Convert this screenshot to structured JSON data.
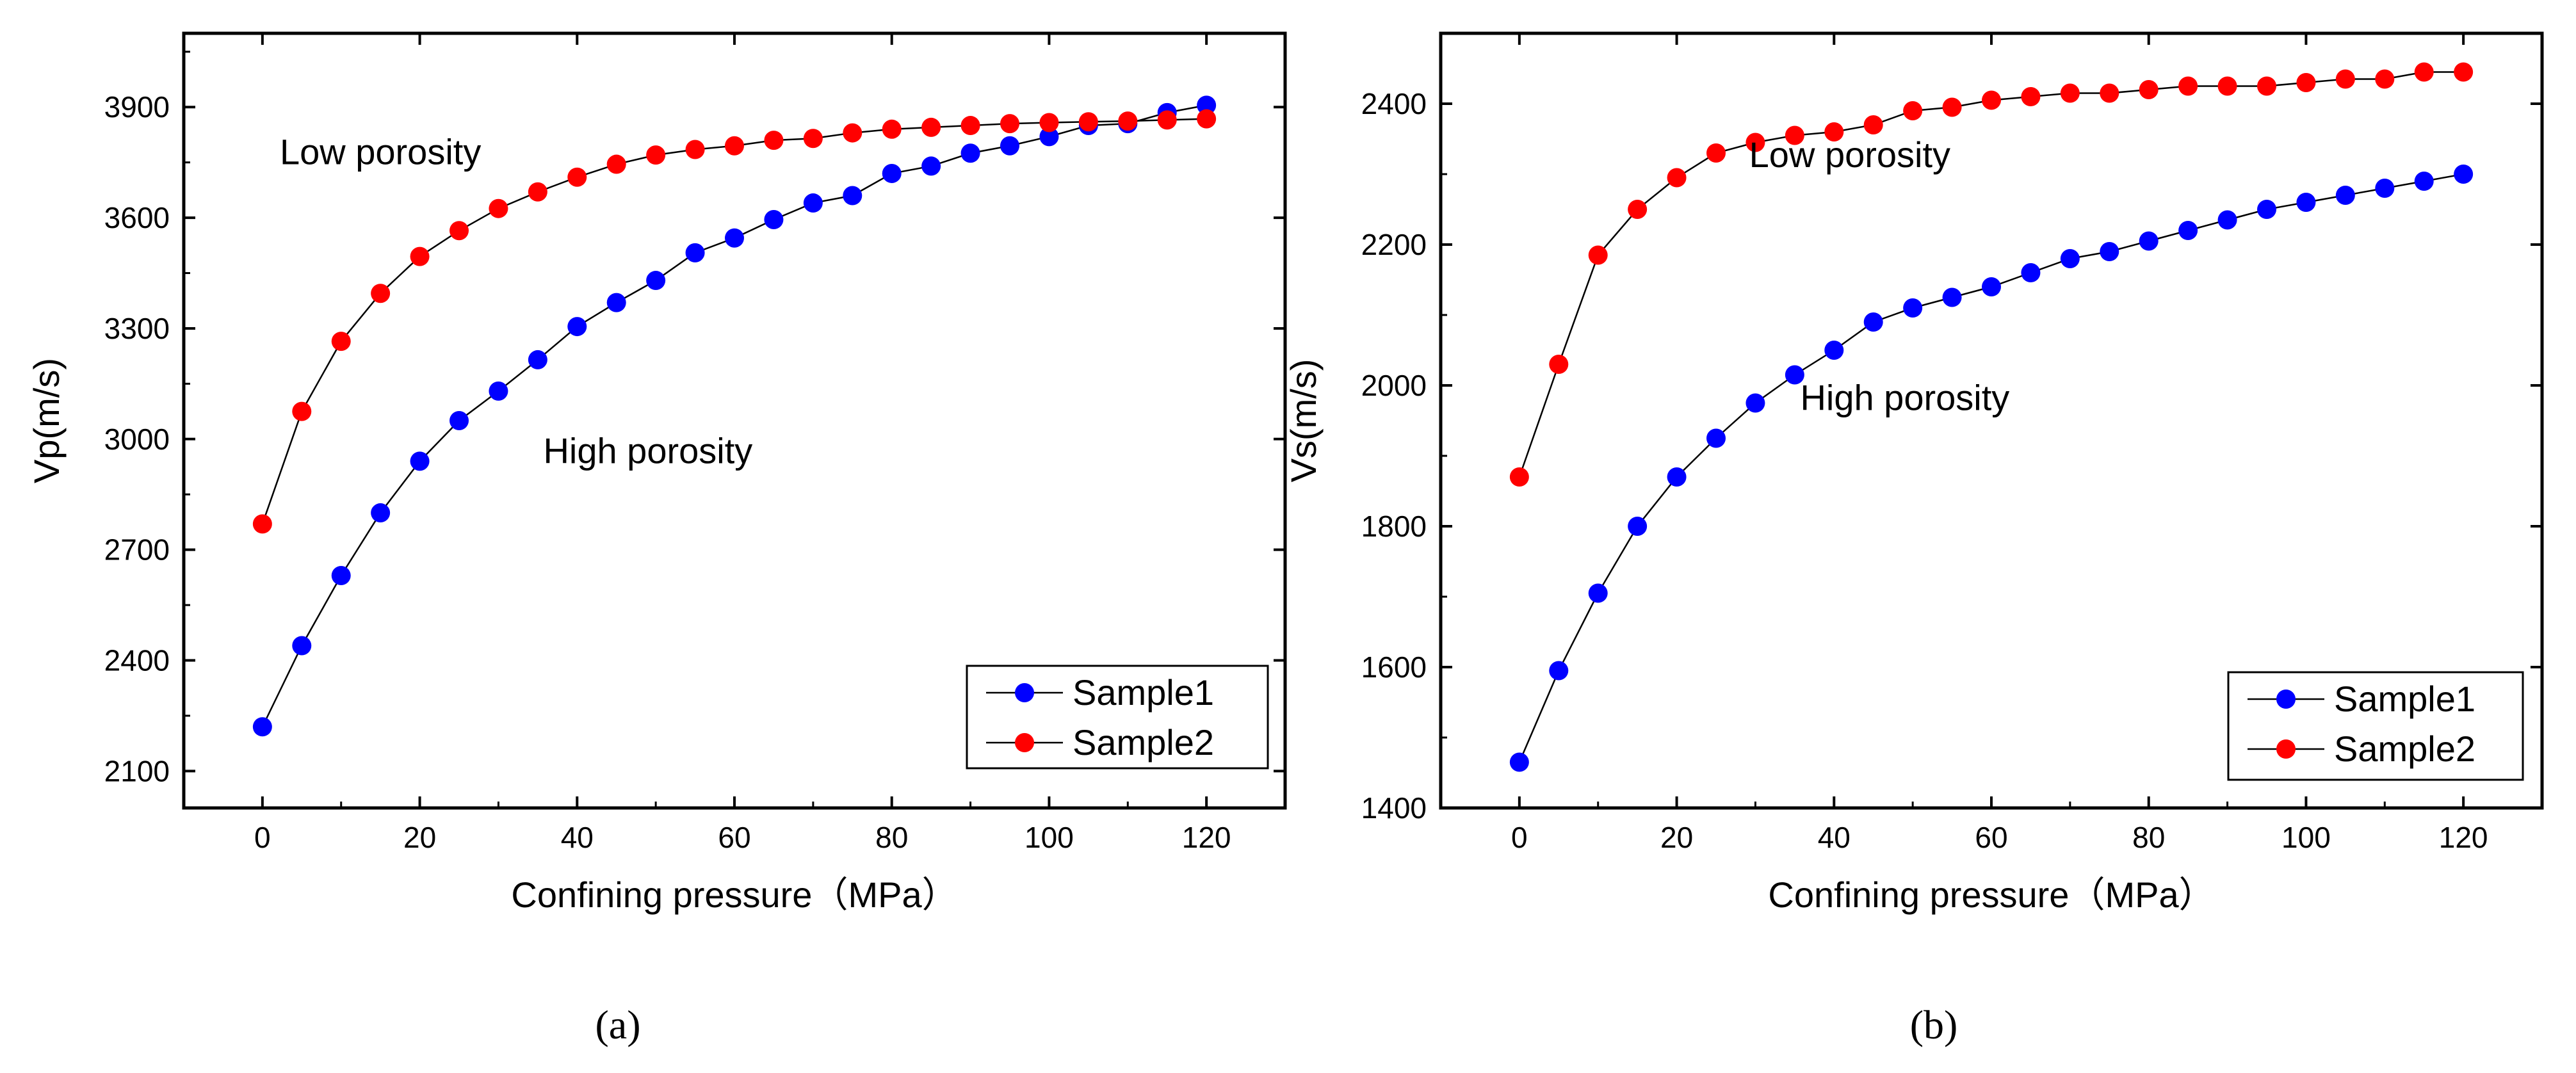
{
  "chart_data": [
    {
      "type": "line",
      "xlabel": "Confining pressure（MPa）",
      "ylabel": "Vp(m/s)",
      "xlim": [
        -10,
        130
      ],
      "ylim": [
        2000,
        4100
      ],
      "xticks": [
        0,
        20,
        40,
        60,
        80,
        100,
        120
      ],
      "yticks": [
        2100,
        2400,
        2700,
        3000,
        3300,
        3600,
        3900
      ],
      "grid": false,
      "legend_position": "bottom-right",
      "x": [
        0,
        5,
        10,
        15,
        20,
        25,
        30,
        35,
        40,
        45,
        50,
        55,
        60,
        65,
        70,
        75,
        80,
        85,
        90,
        95,
        100,
        105,
        110,
        115,
        120
      ],
      "series": [
        {
          "name": "Sample1",
          "color": "#0000ff",
          "values": [
            2220,
            2440,
            2630,
            2800,
            2940,
            3050,
            3130,
            3215,
            3305,
            3370,
            3430,
            3505,
            3545,
            3595,
            3640,
            3660,
            3720,
            3740,
            3775,
            3795,
            3820,
            3850,
            3855,
            3885,
            3905
          ]
        },
        {
          "name": "Sample2",
          "color": "#ff0000",
          "values": [
            2770,
            3075,
            3265,
            3395,
            3495,
            3565,
            3625,
            3670,
            3710,
            3745,
            3770,
            3785,
            3795,
            3810,
            3815,
            3830,
            3840,
            3845,
            3850,
            3855,
            3858,
            3860,
            3862,
            3865,
            3868
          ]
        }
      ],
      "annotations": [
        {
          "text": "Low porosity",
          "x": 15,
          "y": 3745
        },
        {
          "text": "High porosity",
          "x": 49,
          "y": 2935
        }
      ],
      "panel_label": "(a)"
    },
    {
      "type": "line",
      "xlabel": "Confining pressure（MPa）",
      "ylabel": "Vs(m/s)",
      "xlim": [
        -10,
        130
      ],
      "ylim": [
        1400,
        2500
      ],
      "xticks": [
        0,
        20,
        40,
        60,
        80,
        100,
        120
      ],
      "yticks": [
        1400,
        1600,
        1800,
        2000,
        2200,
        2400
      ],
      "grid": false,
      "legend_position": "bottom-right",
      "x": [
        0,
        5,
        10,
        15,
        20,
        25,
        30,
        35,
        40,
        45,
        50,
        55,
        60,
        65,
        70,
        75,
        80,
        85,
        90,
        95,
        100,
        105,
        110,
        115,
        120
      ],
      "series": [
        {
          "name": "Sample1",
          "color": "#0000ff",
          "values": [
            1465,
            1595,
            1705,
            1800,
            1870,
            1925,
            1975,
            2015,
            2050,
            2090,
            2110,
            2125,
            2140,
            2160,
            2180,
            2190,
            2205,
            2220,
            2235,
            2250,
            2260,
            2270,
            2280,
            2290,
            2300
          ]
        },
        {
          "name": "Sample2",
          "color": "#ff0000",
          "values": [
            1870,
            2030,
            2185,
            2250,
            2295,
            2330,
            2345,
            2355,
            2360,
            2370,
            2390,
            2395,
            2405,
            2410,
            2415,
            2415,
            2420,
            2425,
            2425,
            2425,
            2430,
            2435,
            2435,
            2445,
            2445
          ]
        }
      ],
      "annotations": [
        {
          "text": "Low porosity",
          "x": 42,
          "y": 2310
        },
        {
          "text": "High porosity",
          "x": 49,
          "y": 1965
        }
      ],
      "panel_label": "(b)"
    }
  ]
}
